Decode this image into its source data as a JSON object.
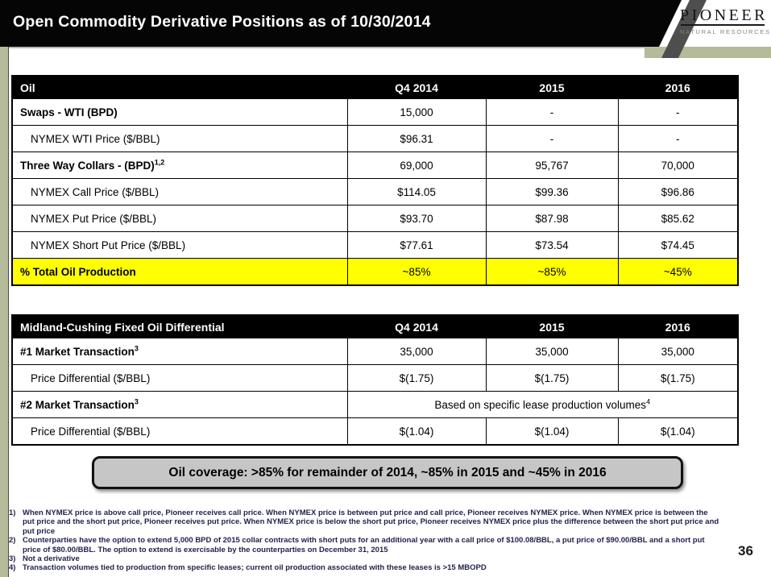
{
  "header": {
    "title": "Open Commodity Derivative Positions as of 10/30/2014",
    "logo_name": "PIONEER",
    "logo_subtitle": "NATURAL RESOURCES"
  },
  "colors": {
    "sage_accent": "#b5ba98",
    "highlight_yellow": "#ffff00",
    "callout_gray": "#c6c6c6",
    "footnote_navy": "#22224e",
    "header_black": "#050505"
  },
  "oil_table": {
    "headers": [
      "Oil",
      "Q4 2014",
      "2015",
      "2016"
    ],
    "rows": [
      {
        "label": "Swaps - WTI (BPD)",
        "bold": true,
        "values": [
          "15,000",
          "-",
          "-"
        ]
      },
      {
        "label": "NYMEX WTI Price ($/BBL)",
        "indent": true,
        "values": [
          "$96.31",
          "-",
          "-"
        ]
      },
      {
        "label": "Three Way Collars - (BPD)",
        "sup": "1,2",
        "bold": true,
        "values": [
          "69,000",
          "95,767",
          "70,000"
        ]
      },
      {
        "label": "NYMEX Call Price ($/BBL)",
        "indent": true,
        "values": [
          "$114.05",
          "$99.36",
          "$96.86"
        ]
      },
      {
        "label": "NYMEX Put Price ($/BBL)",
        "indent": true,
        "values": [
          "$93.70",
          "$87.98",
          "$85.62"
        ]
      },
      {
        "label": "NYMEX Short Put Price ($/BBL)",
        "indent": true,
        "values": [
          "$77.61",
          "$73.54",
          "$74.45"
        ]
      },
      {
        "label": "% Total Oil Production",
        "bold": true,
        "highlight": true,
        "values": [
          "~85%",
          "~85%",
          "~45%"
        ]
      }
    ]
  },
  "differential_table": {
    "headers": [
      "Midland-Cushing Fixed Oil Differential",
      "Q4 2014",
      "2015",
      "2016"
    ],
    "rows": [
      {
        "label": "#1 Market Transaction",
        "sup": "3",
        "bold": true,
        "values": [
          "35,000",
          "35,000",
          "35,000"
        ]
      },
      {
        "label": "Price Differential ($/BBL)",
        "indent": true,
        "values": [
          "$(1.75)",
          "$(1.75)",
          "$(1.75)"
        ]
      },
      {
        "label": "#2 Market Transaction",
        "sup": "3",
        "bold": true,
        "merged": "Based on specific lease production volumes",
        "merged_sup": "4"
      },
      {
        "label": "Price Differential ($/BBL)",
        "indent": true,
        "values": [
          "$(1.04)",
          "$(1.04)",
          "$(1.04)"
        ]
      }
    ]
  },
  "callout": {
    "text": "Oil coverage: >85% for remainder of 2014, ~85% in 2015 and ~45% in 2016"
  },
  "footnotes": [
    {
      "num": "1)",
      "text": "When NYMEX price is above call price, Pioneer receives call price.  When NYMEX price is between put price and call price, Pioneer receives NYMEX price.  When NYMEX price is between the put price and the short put price, Pioneer receives put price.  When NYMEX price is below the short put price, Pioneer receives NYMEX price plus the difference between the short put price and put price"
    },
    {
      "num": "2)",
      "text": "Counterparties have the option to extend 5,000 BPD of 2015 collar contracts with short puts for an additional year with a call price of $100.08/BBL, a put price of $90.00/BBL and a short put price of $80.00/BBL.  The option to extend is exercisable by the counterparties on December 31, 2015"
    },
    {
      "num": "3)",
      "text": "Not a derivative"
    },
    {
      "num": "4)",
      "text": "Transaction volumes tied to production from specific leases; current oil production associated with these leases is >15 MBOPD"
    }
  ],
  "page_number": "36"
}
